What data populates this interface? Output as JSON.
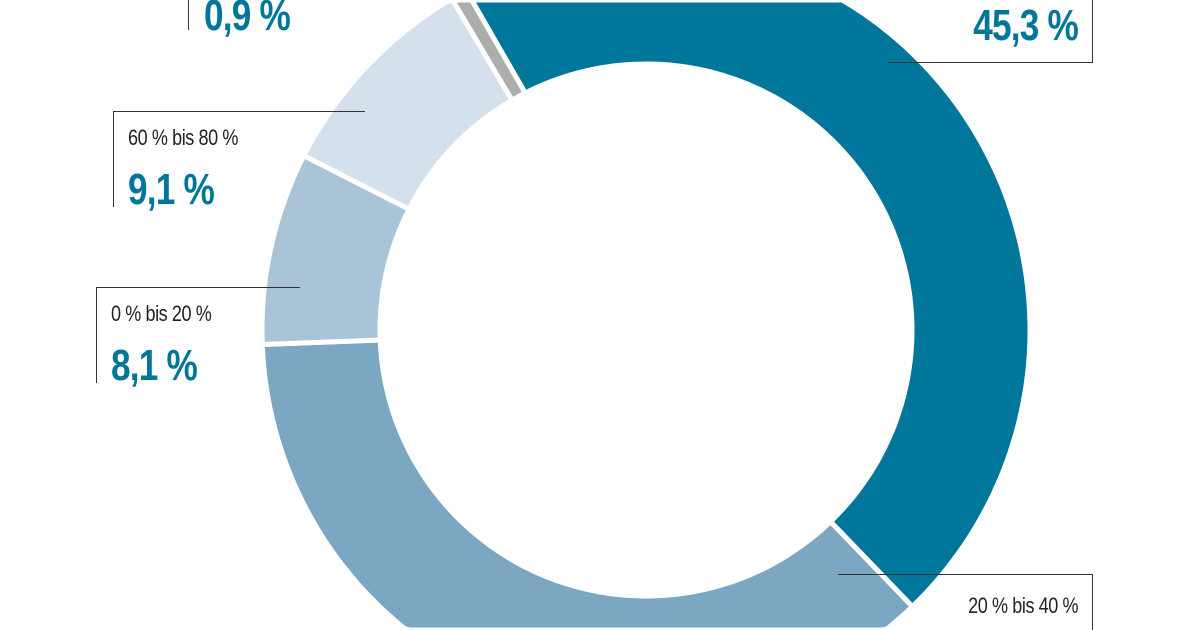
{
  "chart_data": {
    "type": "pie",
    "donut": true,
    "title": "",
    "segments": [
      {
        "label": "",
        "value": 45.3,
        "value_label": "45,3 %",
        "color": "#00769a"
      },
      {
        "label": "20 % bis 40 %",
        "value": 36.6,
        "value_label": "",
        "color": "#7ba7c2"
      },
      {
        "label": "0 % bis 20 %",
        "value": 8.1,
        "value_label": "8,1 %",
        "color": "#a9c3d7"
      },
      {
        "label": "60 % bis 80 %",
        "value": 9.1,
        "value_label": "9,1 %",
        "color": "#d4e0eb"
      },
      {
        "label": "",
        "value": 0.9,
        "value_label": "0,9 %",
        "color": "#adadad"
      }
    ]
  }
}
